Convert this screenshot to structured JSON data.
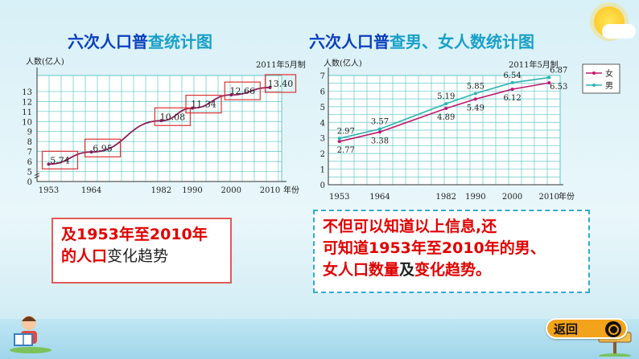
{
  "left_panel": {
    "title_parts": [
      "六次人口普",
      "查统计图"
    ]
  },
  "right_panel": {
    "title_parts": [
      "六次人口普",
      "查男、女人数统计图"
    ]
  },
  "box1": {
    "line1_parts": [
      "及1953年至2010年"
    ],
    "line2_parts": [
      "的人口",
      "变化趋势"
    ]
  },
  "box2": {
    "line1": "不但可以知道以上信息,还",
    "line2": "可知道1953年至2010年的男、",
    "line3_parts": [
      "女人口数量",
      "及",
      "变化趋势。"
    ]
  },
  "back_button": {
    "label": "返回"
  },
  "colors": {
    "title_cyan": "#1aa0c8",
    "title_blue": "#0a3fbf",
    "series_female": "#c0186f",
    "series_male": "#2db3b3",
    "box_red": "#e00000",
    "grid": "#5fc7c7"
  },
  "chart_data": [
    {
      "type": "line",
      "ylabel": "人数(亿人)",
      "xlabel": "年份",
      "note": "2011年5月制",
      "categories": [
        "1953",
        "1964",
        "1982",
        "1990",
        "2000",
        "2010"
      ],
      "x": [
        1953,
        1964,
        1982,
        1990,
        2000,
        2010
      ],
      "ylim": [
        0,
        13
      ],
      "yticks": [
        0,
        5,
        6,
        7,
        8,
        9,
        10,
        11,
        12,
        13
      ],
      "series": [
        {
          "values": [
            5.74,
            6.95,
            10.08,
            11.34,
            12.66,
            13.4
          ],
          "labels": [
            "5.74",
            "6.95",
            "10.08",
            "11.34",
            "12.66",
            "13.40"
          ]
        }
      ],
      "grid": true
    },
    {
      "type": "line",
      "ylabel": "人数(亿人)",
      "xlabel": "年份",
      "note": "2011年5月制",
      "categories": [
        "1953",
        "1964",
        "1982",
        "1990",
        "2000",
        "2010"
      ],
      "x": [
        1953,
        1964,
        1982,
        1990,
        2000,
        2010
      ],
      "ylim": [
        0,
        7
      ],
      "yticks": [
        0,
        1,
        2,
        3,
        4,
        5,
        6,
        7
      ],
      "legend_position": "top-right",
      "series": [
        {
          "name": "女",
          "values": [
            2.77,
            3.38,
            4.89,
            5.49,
            6.12,
            6.53
          ],
          "labels": [
            "2.77",
            "3.38",
            "4.89",
            "5.49",
            "6.12",
            "6.53"
          ]
        },
        {
          "name": "男",
          "values": [
            2.97,
            3.57,
            5.19,
            5.85,
            6.54,
            6.87
          ],
          "labels": [
            "2.97",
            "3.57",
            "5.19",
            "5.85",
            "6.54",
            "6.87"
          ]
        }
      ],
      "grid": true
    }
  ]
}
